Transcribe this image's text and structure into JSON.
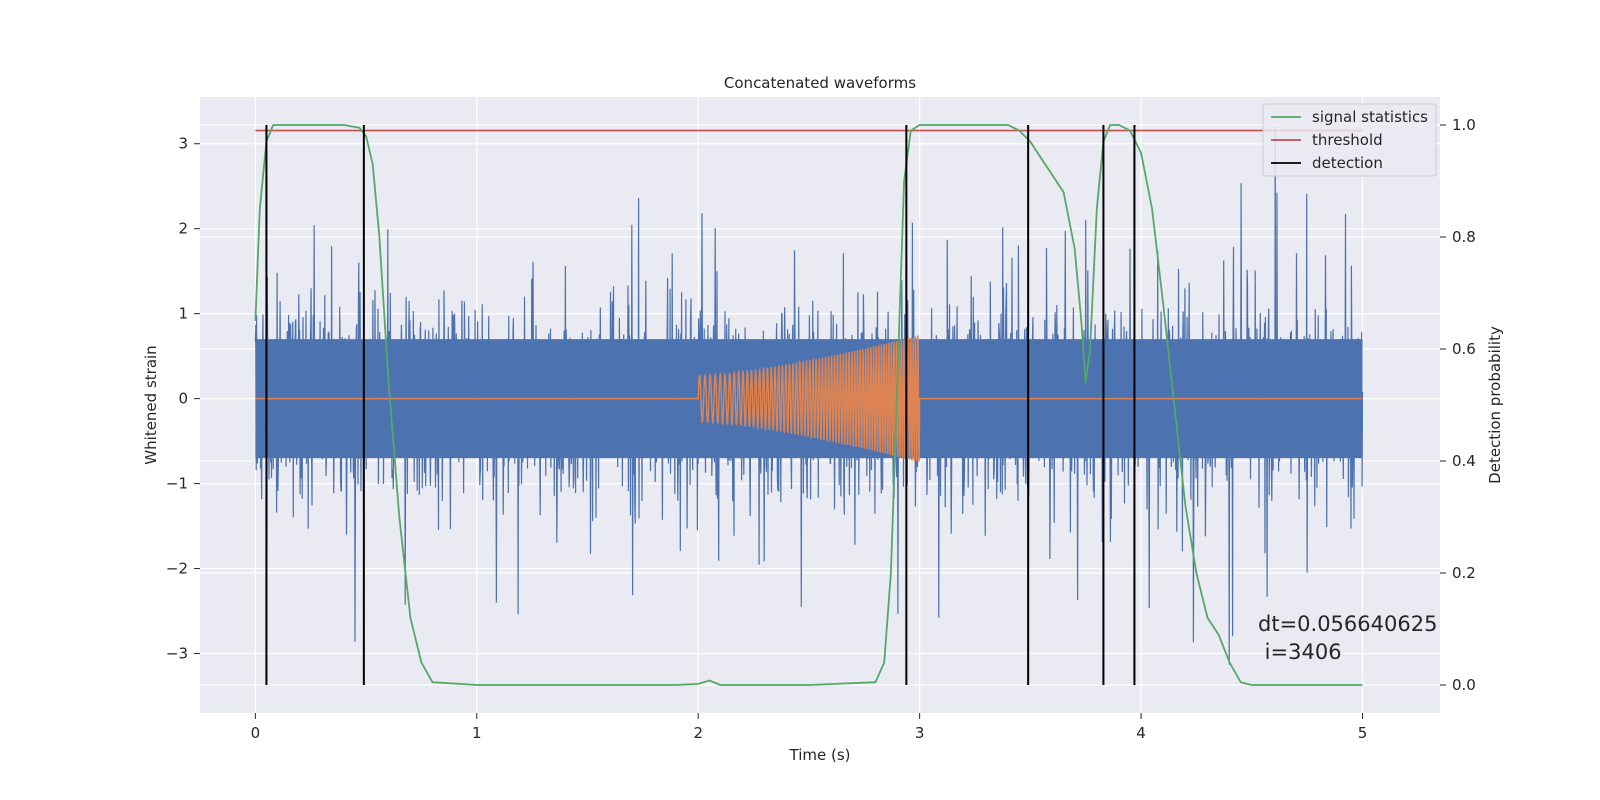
{
  "chart_data": {
    "type": "line",
    "title": "Concatenated waveforms",
    "xlabel": "Time (s)",
    "ylabel": "Whitened strain",
    "y2label": "Detection probability",
    "xlim": [
      -0.25,
      5.35
    ],
    "ylim": [
      -3.7,
      3.55
    ],
    "y2lim": [
      -0.05,
      1.05
    ],
    "x_ticks": [
      0,
      1,
      2,
      3,
      4,
      5
    ],
    "y_ticks": [
      -3,
      -2,
      -1,
      0,
      1,
      2,
      3
    ],
    "y2_ticks": [
      0.0,
      0.2,
      0.4,
      0.6,
      0.8,
      1.0
    ],
    "x_tick_labels": [
      "0",
      "1",
      "2",
      "3",
      "4",
      "5"
    ],
    "y_tick_labels": [
      "−3",
      "−2",
      "−1",
      "0",
      "1",
      "2",
      "3"
    ],
    "y2_tick_labels": [
      "0.0",
      "0.2",
      "0.4",
      "0.6",
      "0.8",
      "1.0"
    ],
    "grid": true,
    "legend_position": "top-right",
    "colors": {
      "strain": "#4c72b0",
      "injection": "#dd8452",
      "signal_statistics": "#55a868",
      "threshold": "#c44e52",
      "detection": "#000000",
      "axes_bg": "#eaeaf2",
      "grid": "#ffffff"
    },
    "series": [
      {
        "name": "signal statistics",
        "axis": "right",
        "x": [
          0.0,
          0.02,
          0.05,
          0.08,
          0.1,
          0.2,
          0.3,
          0.4,
          0.47,
          0.5,
          0.53,
          0.56,
          0.6,
          0.65,
          0.7,
          0.75,
          0.8,
          1.0,
          1.5,
          1.9,
          2.0,
          2.05,
          2.1,
          2.2,
          2.5,
          2.8,
          2.84,
          2.87,
          2.9,
          2.93,
          2.96,
          3.0,
          3.2,
          3.4,
          3.45,
          3.5,
          3.55,
          3.6,
          3.65,
          3.7,
          3.73,
          3.75,
          3.77,
          3.8,
          3.83,
          3.86,
          3.9,
          3.95,
          4.0,
          4.05,
          4.1,
          4.15,
          4.2,
          4.25,
          4.3,
          4.35,
          4.4,
          4.45,
          4.5,
          4.6,
          5.0
        ],
        "values": [
          0.65,
          0.85,
          0.97,
          1.0,
          1.0,
          1.0,
          1.0,
          1.0,
          0.995,
          0.98,
          0.93,
          0.8,
          0.55,
          0.3,
          0.12,
          0.04,
          0.005,
          0.0,
          0.0,
          0.0,
          0.002,
          0.008,
          0.0,
          0.0,
          0.0,
          0.005,
          0.04,
          0.2,
          0.55,
          0.9,
          0.99,
          1.0,
          1.0,
          1.0,
          0.99,
          0.97,
          0.94,
          0.91,
          0.88,
          0.78,
          0.65,
          0.54,
          0.6,
          0.85,
          0.97,
          1.0,
          1.0,
          0.99,
          0.95,
          0.85,
          0.68,
          0.5,
          0.32,
          0.2,
          0.12,
          0.09,
          0.04,
          0.005,
          0.0,
          0.0,
          0.0
        ]
      },
      {
        "name": "threshold",
        "axis": "right",
        "x": [
          0.0,
          5.0
        ],
        "values": [
          0.99,
          0.99
        ]
      },
      {
        "name": "detection",
        "axis": "right",
        "type": "vlines",
        "x": [
          0.05,
          0.49,
          2.94,
          3.49,
          3.83,
          3.97
        ],
        "y_range": [
          0.0,
          1.0
        ]
      },
      {
        "axis": "left",
        "type": "noise",
        "x_range": [
          0.0,
          5.0
        ],
        "core_amplitude": 0.7,
        "spike_range": [
          -3.4,
          3.2
        ]
      },
      {
        "axis": "left",
        "type": "chirp",
        "x_range": [
          2.0,
          3.0
        ],
        "amplitude_range": [
          0.27,
          0.75
        ],
        "baseline": 0.0
      }
    ],
    "annotation": [
      "dt=0.056640625",
      " i=3406"
    ]
  }
}
